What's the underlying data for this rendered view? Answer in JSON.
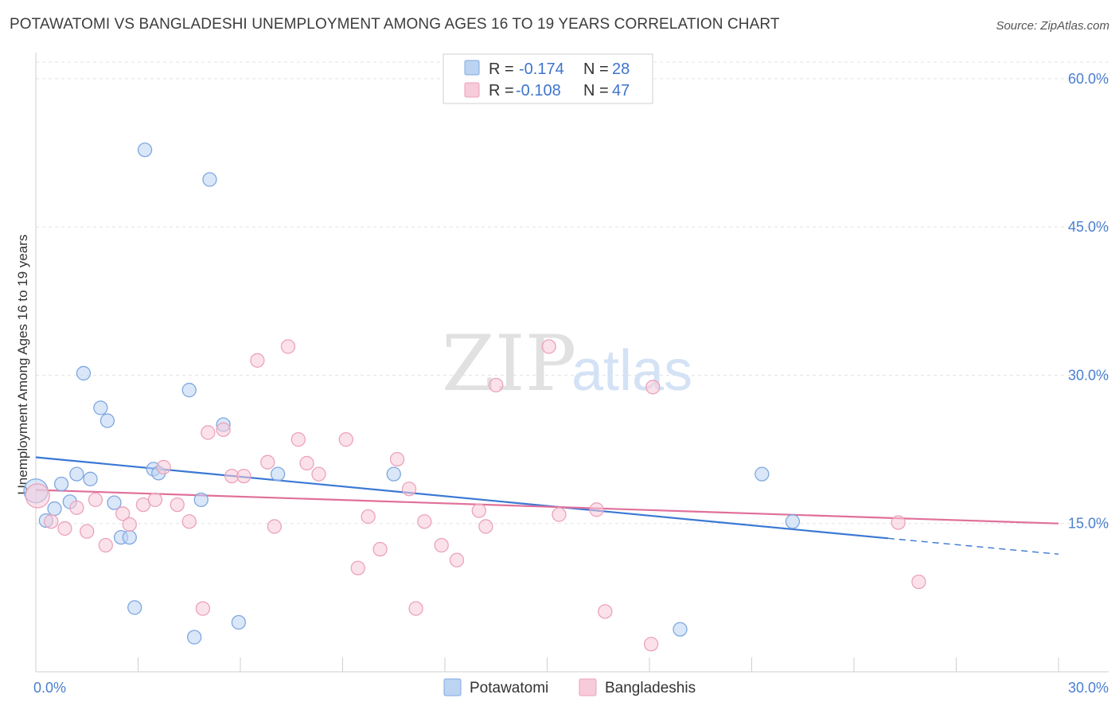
{
  "header": {
    "title": "POTAWATOMI VS BANGLADESHI UNEMPLOYMENT AMONG AGES 16 TO 19 YEARS CORRELATION CHART",
    "source": "Source: ZipAtlas.com"
  },
  "watermark": {
    "zip": "ZIP",
    "atlas": "atlas"
  },
  "chart_data": {
    "type": "scatter",
    "ylabel": "Unemployment Among Ages 16 to 19 years",
    "xlim": [
      0,
      30
    ],
    "ylim": [
      0,
      62
    ],
    "x_ticks": [
      "0.0%",
      "30.0%"
    ],
    "y_ticks": [
      {
        "value": 15,
        "label": "15.0%"
      },
      {
        "value": 30,
        "label": "30.0%"
      },
      {
        "value": 45,
        "label": "45.0%"
      },
      {
        "value": 60,
        "label": "60.0%"
      }
    ],
    "legend_top": [
      {
        "r_label": "R =",
        "r_value": "-0.174",
        "n_label": "N =",
        "n_value": "28"
      },
      {
        "r_label": "R =",
        "r_value": "-0.108",
        "n_label": "N =",
        "n_value": "47"
      }
    ],
    "series": [
      {
        "name": "Potawatomi",
        "color": "#7fa8e0",
        "fill": "#bcd3f2",
        "trend_color": "#3a78d4",
        "trend": {
          "x0": 0,
          "y0": 21.7,
          "x1": 25.0,
          "y1": 13.5,
          "dash_to_x": 30,
          "dash_to_y": 11.9
        },
        "points": [
          [
            0.0,
            18.3
          ],
          [
            0.3,
            15.3
          ],
          [
            0.55,
            16.5
          ],
          [
            0.75,
            19.0
          ],
          [
            1.0,
            17.2
          ],
          [
            1.2,
            20.0
          ],
          [
            1.6,
            19.5
          ],
          [
            1.4,
            30.2
          ],
          [
            1.9,
            26.7
          ],
          [
            2.1,
            25.4
          ],
          [
            2.3,
            17.1
          ],
          [
            2.5,
            13.6
          ],
          [
            2.75,
            13.6
          ],
          [
            2.9,
            6.5
          ],
          [
            3.2,
            52.8
          ],
          [
            3.45,
            20.5
          ],
          [
            3.6,
            20.1
          ],
          [
            4.5,
            28.5
          ],
          [
            4.65,
            3.5
          ],
          [
            4.85,
            17.4
          ],
          [
            5.1,
            49.8
          ],
          [
            5.5,
            25.0
          ],
          [
            5.95,
            5.0
          ],
          [
            7.1,
            20.0
          ],
          [
            10.5,
            20.0
          ],
          [
            18.9,
            4.3
          ],
          [
            21.3,
            20.0
          ],
          [
            22.2,
            15.2
          ]
        ]
      },
      {
        "name": "Bangladeshis",
        "color": "#eca2bb",
        "fill": "#f7cbd9",
        "trend_color": "#e0709a",
        "trend": {
          "x0": 0,
          "y0": 18.4,
          "x1": 30,
          "y1": 15.0
        },
        "points": [
          [
            0.05,
            17.8
          ],
          [
            0.45,
            15.2
          ],
          [
            0.85,
            14.5
          ],
          [
            1.2,
            16.6
          ],
          [
            1.5,
            14.2
          ],
          [
            1.75,
            17.4
          ],
          [
            2.05,
            12.8
          ],
          [
            2.55,
            16.0
          ],
          [
            2.75,
            14.9
          ],
          [
            3.15,
            16.9
          ],
          [
            3.5,
            17.4
          ],
          [
            3.75,
            20.7
          ],
          [
            4.15,
            16.9
          ],
          [
            4.5,
            15.2
          ],
          [
            4.9,
            6.4
          ],
          [
            5.05,
            24.2
          ],
          [
            5.5,
            24.5
          ],
          [
            5.75,
            19.8
          ],
          [
            6.1,
            19.8
          ],
          [
            6.5,
            31.5
          ],
          [
            6.8,
            21.2
          ],
          [
            7.0,
            14.7
          ],
          [
            7.4,
            32.9
          ],
          [
            7.7,
            23.5
          ],
          [
            7.95,
            21.1
          ],
          [
            8.3,
            20.0
          ],
          [
            9.1,
            23.5
          ],
          [
            9.45,
            10.5
          ],
          [
            9.75,
            15.7
          ],
          [
            10.1,
            12.4
          ],
          [
            10.6,
            21.5
          ],
          [
            10.95,
            18.5
          ],
          [
            11.15,
            6.4
          ],
          [
            11.4,
            15.2
          ],
          [
            11.9,
            12.8
          ],
          [
            12.35,
            11.3
          ],
          [
            13.0,
            16.3
          ],
          [
            13.2,
            14.7
          ],
          [
            13.5,
            29.0
          ],
          [
            15.05,
            32.9
          ],
          [
            15.35,
            15.9
          ],
          [
            16.45,
            16.4
          ],
          [
            16.7,
            6.1
          ],
          [
            18.1,
            28.8
          ],
          [
            18.05,
            2.8
          ],
          [
            25.3,
            15.1
          ],
          [
            25.9,
            9.1
          ]
        ]
      }
    ]
  }
}
